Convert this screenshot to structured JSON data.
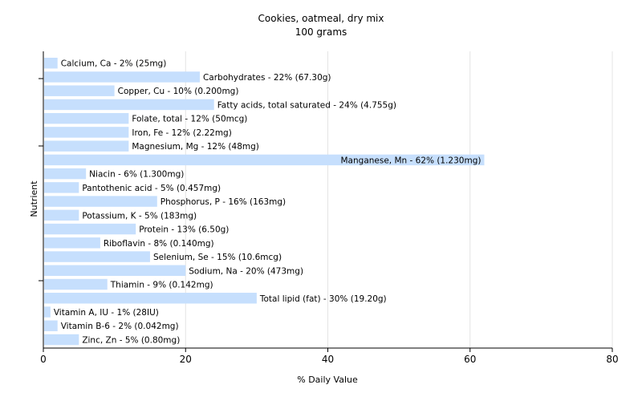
{
  "chart_data": {
    "type": "bar",
    "orientation": "horizontal",
    "title": "Cookies, oatmeal, dry mix",
    "subtitle": "100 grams",
    "xlabel": "% Daily Value",
    "ylabel": "Nutrient",
    "xlim": [
      0,
      80
    ],
    "xticks": [
      0,
      20,
      40,
      60,
      80
    ],
    "grid": true,
    "bar_color": "#c6dffd",
    "grid_color": "#e4e4e4",
    "bars": [
      {
        "nutrient": "Calcium, Ca",
        "value": 2,
        "label": "Calcium, Ca - 2% (25mg)"
      },
      {
        "nutrient": "Carbohydrates",
        "value": 22,
        "label": "Carbohydrates - 22% (67.30g)"
      },
      {
        "nutrient": "Copper, Cu",
        "value": 10,
        "label": "Copper, Cu - 10% (0.200mg)"
      },
      {
        "nutrient": "Fatty acids, total saturated",
        "value": 24,
        "label": "Fatty acids, total saturated - 24% (4.755g)"
      },
      {
        "nutrient": "Folate, total",
        "value": 12,
        "label": "Folate, total - 12% (50mcg)"
      },
      {
        "nutrient": "Iron, Fe",
        "value": 12,
        "label": "Iron, Fe - 12% (2.22mg)"
      },
      {
        "nutrient": "Magnesium, Mg",
        "value": 12,
        "label": "Magnesium, Mg - 12% (48mg)"
      },
      {
        "nutrient": "Manganese, Mn",
        "value": 62,
        "label": "Manganese, Mn - 62% (1.230mg)"
      },
      {
        "nutrient": "Niacin",
        "value": 6,
        "label": "Niacin - 6% (1.300mg)"
      },
      {
        "nutrient": "Pantothenic acid",
        "value": 5,
        "label": "Pantothenic acid - 5% (0.457mg)"
      },
      {
        "nutrient": "Phosphorus, P",
        "value": 16,
        "label": "Phosphorus, P - 16% (163mg)"
      },
      {
        "nutrient": "Potassium, K",
        "value": 5,
        "label": "Potassium, K - 5% (183mg)"
      },
      {
        "nutrient": "Protein",
        "value": 13,
        "label": "Protein - 13% (6.50g)"
      },
      {
        "nutrient": "Riboflavin",
        "value": 8,
        "label": "Riboflavin - 8% (0.140mg)"
      },
      {
        "nutrient": "Selenium, Se",
        "value": 15,
        "label": "Selenium, Se - 15% (10.6mcg)"
      },
      {
        "nutrient": "Sodium, Na",
        "value": 20,
        "label": "Sodium, Na - 20% (473mg)"
      },
      {
        "nutrient": "Thiamin",
        "value": 9,
        "label": "Thiamin - 9% (0.142mg)"
      },
      {
        "nutrient": "Total lipid (fat)",
        "value": 30,
        "label": "Total lipid (fat) - 30% (19.20g)"
      },
      {
        "nutrient": "Vitamin A, IU",
        "value": 1,
        "label": "Vitamin A, IU - 1% (28IU)"
      },
      {
        "nutrient": "Vitamin B-6",
        "value": 2,
        "label": "Vitamin B-6 - 2% (0.042mg)"
      },
      {
        "nutrient": "Zinc, Zn",
        "value": 5,
        "label": "Zinc, Zn - 5% (0.80mg)"
      }
    ]
  }
}
